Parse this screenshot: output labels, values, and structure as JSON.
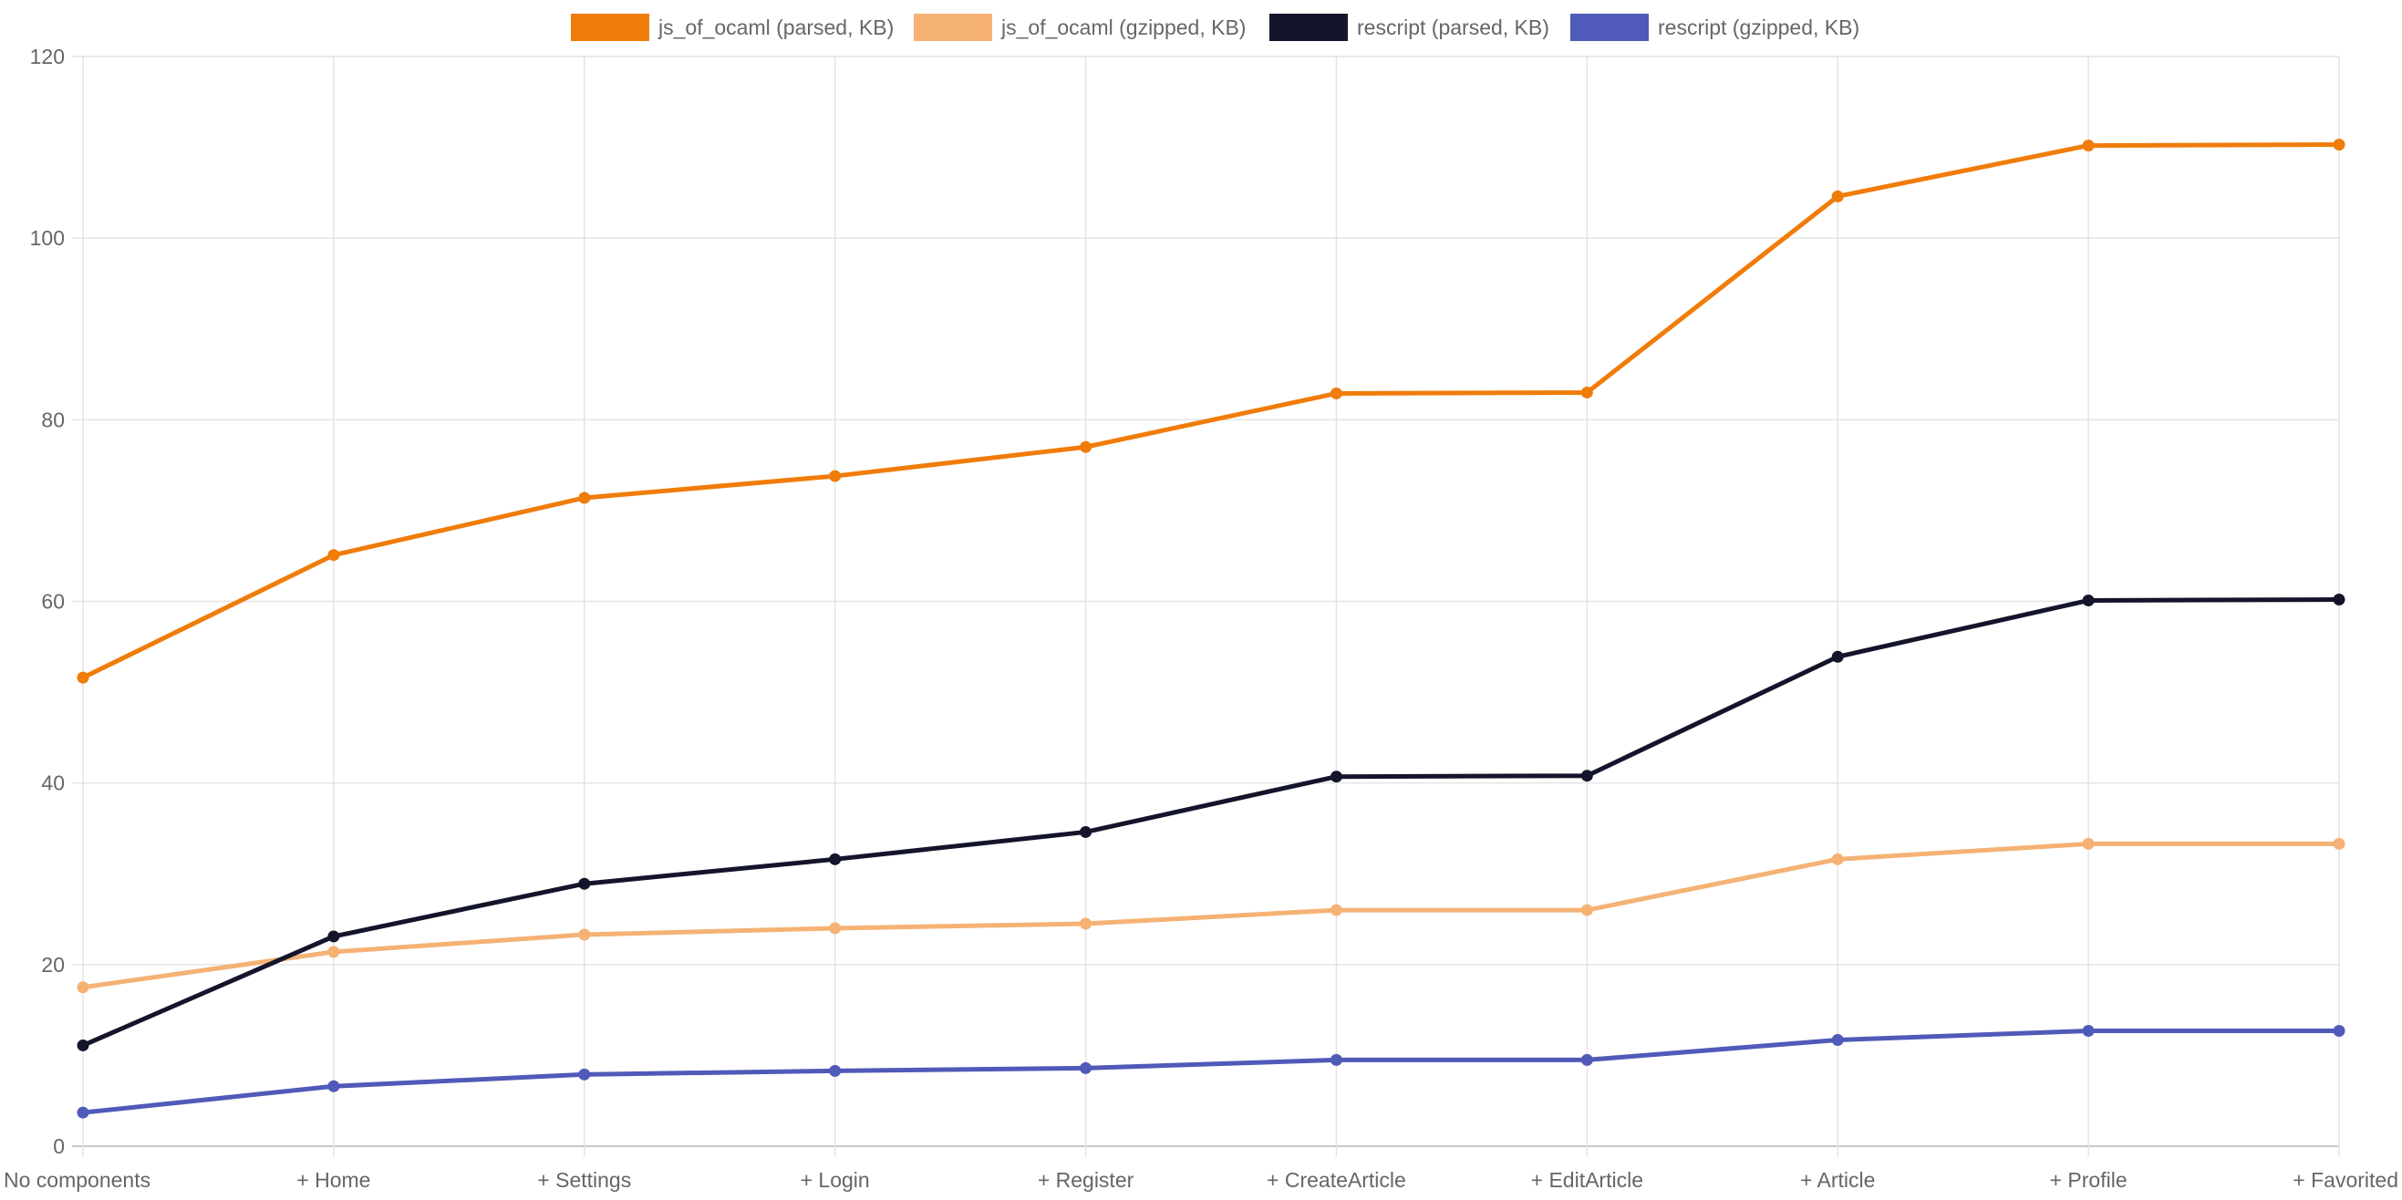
{
  "chart_data": {
    "type": "line",
    "categories": [
      "No components",
      "+ Home",
      "+ Settings",
      "+ Login",
      "+ Register",
      "+ CreateArticle",
      "+ EditArticle",
      "+ Article",
      "+ Profile",
      "+ Favorited"
    ],
    "ylim": [
      0,
      120
    ],
    "yticks": [
      "0",
      "20",
      "40",
      "60",
      "80",
      "100",
      "120"
    ],
    "grid": true,
    "legend_position": "top",
    "series": [
      {
        "name": "js_of_ocaml (parsed, KB)",
        "color": "#f07c0a",
        "values": [
          51.6,
          65.1,
          71.4,
          73.8,
          77.0,
          82.9,
          83.0,
          104.6,
          110.2,
          110.3
        ]
      },
      {
        "name": "js_of_ocaml (gzipped, KB)",
        "color": "#f5b274",
        "values": [
          17.5,
          21.4,
          23.3,
          24.0,
          24.5,
          26.0,
          26.0,
          31.6,
          33.3,
          33.3
        ]
      },
      {
        "name": "rescript (parsed, KB)",
        "color": "#14152b",
        "values": [
          11.1,
          23.1,
          28.9,
          31.6,
          34.6,
          40.7,
          40.8,
          53.9,
          60.1,
          60.2
        ]
      },
      {
        "name": "rescript (gzipped, KB)",
        "color": "#505ab8",
        "values": [
          3.7,
          6.6,
          7.9,
          8.3,
          8.6,
          9.5,
          9.5,
          11.7,
          12.7,
          12.7
        ]
      }
    ]
  }
}
